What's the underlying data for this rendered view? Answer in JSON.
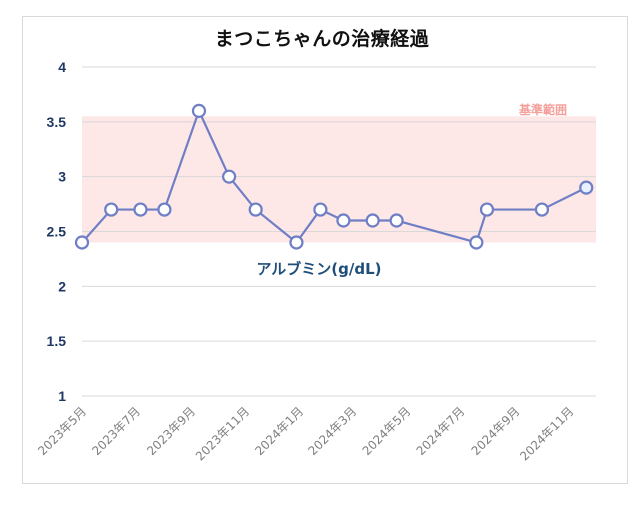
{
  "title": "まつこちゃんの治療経過",
  "colors": {
    "line": "#6f7fc6",
    "marker_fill": "#ffffff",
    "marker_last_fill": "#e8efff",
    "band": "#fde7e7",
    "grid": "#d9d9d9",
    "tick": "#1f3864",
    "ref_text": "#f4a09c",
    "series_text": "#1f4e79"
  },
  "chart_data": {
    "type": "line",
    "title": "まつこちゃんの治療経過",
    "ylim": [
      1,
      4
    ],
    "yticks": [
      "1",
      "1.5",
      "2",
      "2.5",
      "3",
      "3.5",
      "4"
    ],
    "ytick_values": [
      1,
      1.5,
      2,
      2.5,
      3,
      3.5,
      4
    ],
    "xlim": [
      "2023-05-01",
      "2024-12-01"
    ],
    "x_tick_labels": [
      "2023年5月",
      "2023年7月",
      "2023年9月",
      "2023年11月",
      "2024年1月",
      "2024年3月",
      "2024年5月",
      "2024年7月",
      "2024年9月",
      "2024年11月"
    ],
    "x_tick_dates": [
      "2023-05-01",
      "2023-07-01",
      "2023-09-01",
      "2023-11-01",
      "2024-01-01",
      "2024-03-01",
      "2024-05-01",
      "2024-07-01",
      "2024-09-01",
      "2024-11-01"
    ],
    "grid": true,
    "reference_band": {
      "label": "基準範囲",
      "low": 2.4,
      "high": 3.55
    },
    "series": [
      {
        "name": "アルブミン(g/dL)",
        "points": [
          {
            "x": "2023-05-01",
            "y": 2.4
          },
          {
            "x": "2023-06-03",
            "y": 2.7
          },
          {
            "x": "2023-07-06",
            "y": 2.7
          },
          {
            "x": "2023-08-02",
            "y": 2.7
          },
          {
            "x": "2023-09-10",
            "y": 3.6
          },
          {
            "x": "2023-10-14",
            "y": 3.0
          },
          {
            "x": "2023-11-13",
            "y": 2.7
          },
          {
            "x": "2023-12-29",
            "y": 2.4
          },
          {
            "x": "2024-01-25",
            "y": 2.7
          },
          {
            "x": "2024-02-20",
            "y": 2.6
          },
          {
            "x": "2024-03-24",
            "y": 2.6
          },
          {
            "x": "2024-04-20",
            "y": 2.6
          },
          {
            "x": "2024-07-19",
            "y": 2.4
          },
          {
            "x": "2024-07-31",
            "y": 2.7
          },
          {
            "x": "2024-10-01",
            "y": 2.7
          },
          {
            "x": "2024-11-20",
            "y": 2.9
          }
        ]
      }
    ]
  }
}
